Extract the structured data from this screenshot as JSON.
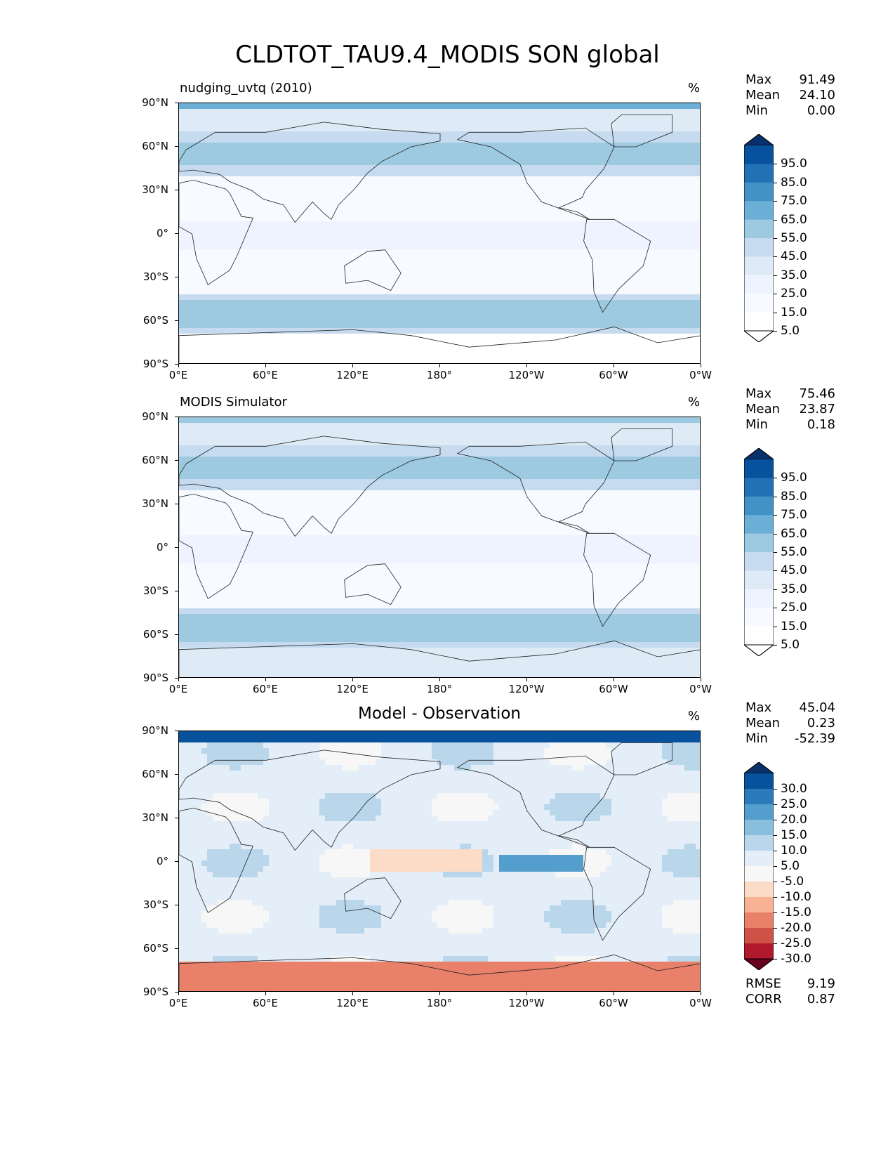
{
  "title": "CLDTOT_TAU9.4_MODIS SON global",
  "axes": {
    "lat_labels": [
      "90°N",
      "60°N",
      "30°N",
      "0°",
      "30°S",
      "60°S",
      "90°S"
    ],
    "lon_labels": [
      "0°E",
      "60°E",
      "120°E",
      "180°",
      "120°W",
      "60°W",
      "0°W"
    ]
  },
  "panels": [
    {
      "title": "nudging_uvtq (2010)",
      "title_style": "left",
      "units": "%",
      "stats": [
        {
          "label": "Max",
          "value": "91.49"
        },
        {
          "label": "Mean",
          "value": "24.10"
        },
        {
          "label": "Min",
          "value": "0.00"
        }
      ],
      "colorbar": {
        "labels": [
          "95.0",
          "85.0",
          "75.0",
          "65.0",
          "55.0",
          "45.0",
          "35.0",
          "25.0",
          "15.0",
          "5.0"
        ],
        "colors": [
          "#08306b",
          "#08519c",
          "#2171b5",
          "#4292c6",
          "#6baed6",
          "#9ecae1",
          "#c6dbef",
          "#deebf7",
          "#eff3ff",
          "#f7fbff",
          "#ffffff",
          "#ffffff"
        ]
      }
    },
    {
      "title": "MODIS Simulator",
      "title_style": "left",
      "units": "%",
      "stats": [
        {
          "label": "Max",
          "value": "75.46"
        },
        {
          "label": "Mean",
          "value": "23.87"
        },
        {
          "label": "Min",
          "value": "0.18"
        }
      ],
      "colorbar": {
        "labels": [
          "95.0",
          "85.0",
          "75.0",
          "65.0",
          "55.0",
          "45.0",
          "35.0",
          "25.0",
          "15.0",
          "5.0"
        ],
        "colors": [
          "#08306b",
          "#08519c",
          "#2171b5",
          "#4292c6",
          "#6baed6",
          "#9ecae1",
          "#c6dbef",
          "#deebf7",
          "#eff3ff",
          "#f7fbff",
          "#ffffff",
          "#ffffff"
        ]
      }
    },
    {
      "title": "Model - Observation",
      "title_style": "center",
      "units": "%",
      "stats": [
        {
          "label": "Max",
          "value": "45.04"
        },
        {
          "label": "Mean",
          "value": "0.23"
        },
        {
          "label": "Min",
          "value": "-52.39"
        }
      ],
      "colorbar": {
        "labels": [
          "30.0",
          "25.0",
          "20.0",
          "15.0",
          "10.0",
          "5.0",
          "-5.0",
          "-10.0",
          "-15.0",
          "-20.0",
          "-25.0",
          "-30.0"
        ],
        "colors": [
          "#08306b",
          "#08519c",
          "#2b7bba",
          "#539ecd",
          "#89bedc",
          "#bad6eb",
          "#e3eef9",
          "#f7f7f7",
          "#fcdbc7",
          "#f7b294",
          "#e8806a",
          "#cf5246",
          "#b2182b",
          "#67001f"
        ]
      },
      "extra_stats": [
        {
          "label": "RMSE",
          "value": "9.19"
        },
        {
          "label": "CORR",
          "value": "0.87"
        }
      ]
    }
  ]
}
